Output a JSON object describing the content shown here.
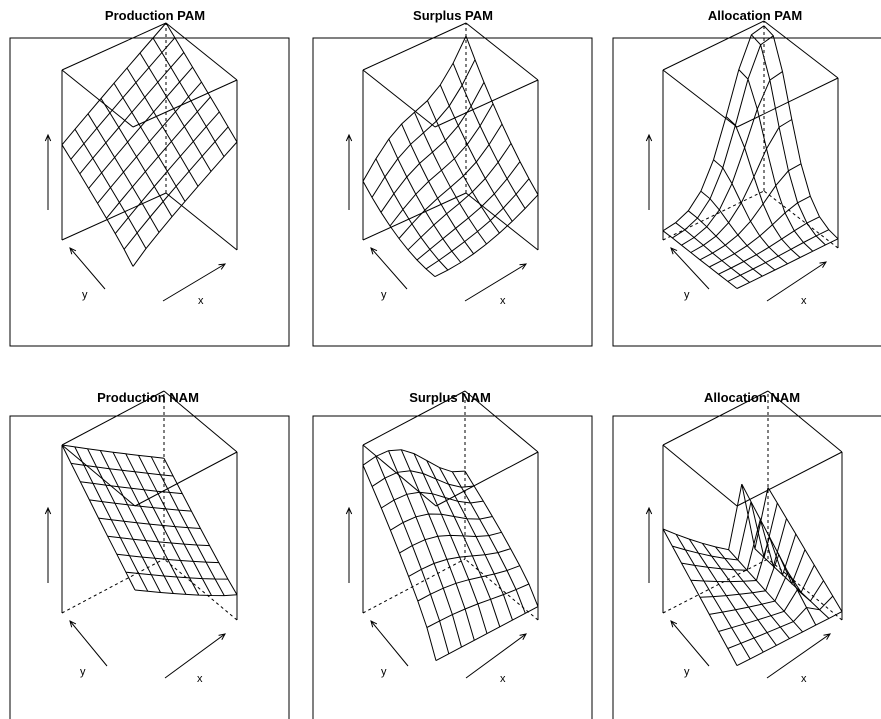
{
  "chart_data": [
    {
      "type": "surface",
      "title": "Production PAM",
      "xlabel": "x",
      "ylabel": "y",
      "zlabel": "",
      "grid": [
        9,
        9
      ]
    },
    {
      "type": "surface",
      "title": "Surplus PAM",
      "xlabel": "x",
      "ylabel": "y",
      "zlabel": "",
      "grid": [
        9,
        9
      ]
    },
    {
      "type": "surface",
      "title": "Allocation PAM",
      "xlabel": "x",
      "ylabel": "y",
      "zlabel": "",
      "grid": [
        9,
        9
      ]
    },
    {
      "type": "surface",
      "title": "Production NAM",
      "xlabel": "x",
      "ylabel": "y",
      "zlabel": "",
      "grid": [
        9,
        9
      ]
    },
    {
      "type": "surface",
      "title": "Surplus NAM",
      "xlabel": "x",
      "ylabel": "y",
      "zlabel": "",
      "grid": [
        9,
        9
      ]
    },
    {
      "type": "surface",
      "title": "Allocation NAM",
      "xlabel": "x",
      "ylabel": "y",
      "zlabel": "",
      "grid": [
        9,
        9
      ]
    }
  ]
}
